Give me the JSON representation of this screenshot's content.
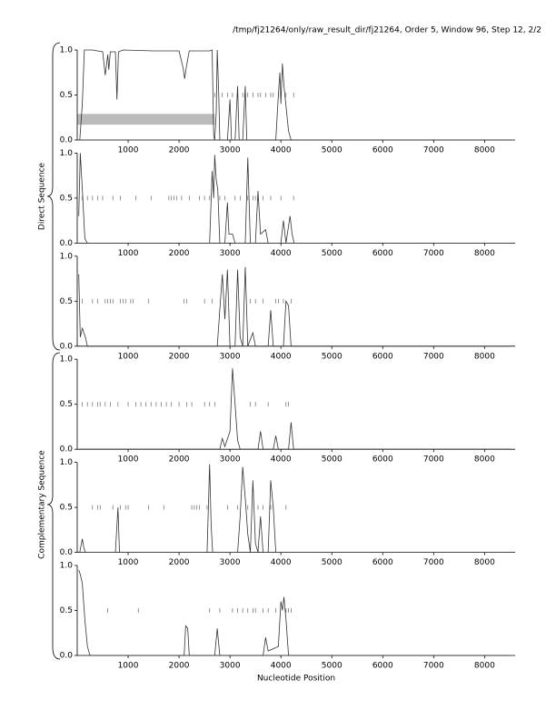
{
  "title": "/tmp/fj21264/only/raw_result_dir/fj21264, Order 5, Window 96, Step 12, 2/2",
  "group_labels": [
    "Direct Sequence",
    "Complementary Sequence"
  ],
  "xlabel": "Nucleotide Position",
  "chart_data": [
    {
      "type": "line",
      "xlim": [
        0,
        8600
      ],
      "ylim": [
        0,
        1
      ],
      "xticks": [
        1000,
        2000,
        3000,
        4000,
        5000,
        6000,
        7000,
        8000
      ],
      "yticks": [
        {
          "value": 0,
          "label": "0.0"
        },
        {
          "value": 0.5,
          "label": "0.5"
        },
        {
          "value": 1,
          "label": "1.0"
        }
      ],
      "x": [
        50,
        100,
        140,
        300,
        500,
        550,
        600,
        620,
        650,
        750,
        780,
        810,
        900,
        1500,
        2000,
        2080,
        2110,
        2140,
        2200,
        2600,
        2650,
        2680,
        2700,
        2730,
        2750,
        2780,
        2800,
        2950,
        3000,
        3030,
        3100,
        3150,
        3180,
        3250,
        3300,
        3330,
        3900,
        3950,
        3980,
        4000,
        4030,
        4060,
        4150,
        4200,
        8500
      ],
      "series": [
        {
          "color": "#333333",
          "values": [
            0,
            0.4,
            1,
            1,
            0.98,
            0.72,
            0.95,
            0.78,
            0.98,
            0.98,
            0.45,
            0.98,
            1,
            0.99,
            0.99,
            0.8,
            0.68,
            0.8,
            0.99,
            0.99,
            1,
            0.05,
            0,
            0.3,
            1,
            0.5,
            0,
            0,
            0.45,
            0,
            0,
            0.6,
            0,
            0,
            0.6,
            0,
            0,
            0.5,
            0.75,
            0.4,
            0.85,
            0.6,
            0.1,
            0,
            0
          ]
        }
      ],
      "markers": {
        "y": 0.5,
        "x": [
          2700,
          2850,
          2950,
          3050,
          3150,
          3250,
          3300,
          3350,
          3450,
          3550,
          3600,
          3700,
          3800,
          3850,
          3950,
          4100,
          4250
        ]
      },
      "band": {
        "x": [
          0,
          2700
        ],
        "y": [
          0.17,
          0.29
        ],
        "color": "#bbbbbb"
      }
    },
    {
      "type": "line",
      "xlim": [
        0,
        8600
      ],
      "ylim": [
        0,
        1
      ],
      "xticks": [
        1000,
        2000,
        3000,
        4000,
        5000,
        6000,
        7000,
        8000
      ],
      "yticks": [
        {
          "value": 0,
          "label": "0.0"
        },
        {
          "value": 0.5,
          "label": "0.5"
        },
        {
          "value": 1,
          "label": "1.0"
        }
      ],
      "x": [
        30,
        60,
        100,
        150,
        200,
        2600,
        2650,
        2680,
        2700,
        2730,
        2760,
        2800,
        2900,
        2950,
        2980,
        3050,
        3100,
        3300,
        3350,
        3400,
        3500,
        3550,
        3600,
        3700,
        3750,
        4000,
        4050,
        4100,
        4180,
        4220,
        4260,
        8500
      ],
      "series": [
        {
          "color": "#333333",
          "values": [
            0.3,
            1,
            0.6,
            0.05,
            0,
            0,
            0.8,
            0.5,
            0.98,
            0.7,
            0.6,
            0,
            0,
            0.45,
            0.1,
            0.1,
            0,
            0,
            0.95,
            0,
            0,
            0.58,
            0.1,
            0.15,
            0,
            0,
            0.25,
            0,
            0.3,
            0.1,
            0,
            0
          ]
        }
      ],
      "markers": {
        "y": 0.5,
        "x": [
          100,
          200,
          300,
          400,
          500,
          700,
          850,
          1150,
          1450,
          1800,
          1850,
          1900,
          1950,
          2050,
          2200,
          2400,
          2500,
          2600,
          2800,
          2900,
          3100,
          3200,
          3350,
          3450,
          3500,
          3550,
          3650,
          3800,
          4000,
          4250
        ]
      }
    },
    {
      "type": "line",
      "xlim": [
        0,
        8600
      ],
      "ylim": [
        0,
        1
      ],
      "xticks": [
        1000,
        2000,
        3000,
        4000,
        5000,
        6000,
        7000,
        8000
      ],
      "yticks": [
        {
          "value": 0,
          "label": "0.0"
        },
        {
          "value": 0.5,
          "label": "0.5"
        },
        {
          "value": 1,
          "label": "1.0"
        }
      ],
      "x": [
        30,
        60,
        100,
        130,
        160,
        200,
        2750,
        2850,
        2900,
        2950,
        3000,
        3100,
        3150,
        3200,
        3250,
        3300,
        3350,
        3450,
        3500,
        3750,
        3800,
        3850,
        4050,
        4100,
        4150,
        4200,
        8500
      ],
      "series": [
        {
          "color": "#333333",
          "values": [
            0.8,
            0.1,
            0.2,
            0.15,
            0.1,
            0,
            0,
            0.8,
            0.3,
            0.85,
            0,
            0,
            0.85,
            0.1,
            0,
            0.88,
            0,
            0.15,
            0,
            0,
            0.4,
            0,
            0,
            0.5,
            0.45,
            0,
            0
          ]
        }
      ],
      "markers": {
        "y": 0.5,
        "x": [
          100,
          300,
          400,
          550,
          600,
          650,
          700,
          850,
          900,
          950,
          1050,
          1100,
          1400,
          2100,
          2150,
          2500,
          2650,
          3400,
          3500,
          3650,
          3900,
          3950,
          4050,
          4200
        ]
      }
    },
    {
      "type": "line",
      "xlim": [
        0,
        8600
      ],
      "ylim": [
        0,
        1
      ],
      "xticks": [
        1000,
        2000,
        3000,
        4000,
        5000,
        6000,
        7000,
        8000
      ],
      "yticks": [
        {
          "value": 0,
          "label": "0.0"
        },
        {
          "value": 0.5,
          "label": "0.5"
        },
        {
          "value": 1,
          "label": "1.0"
        }
      ],
      "x": [
        50,
        2800,
        2850,
        2900,
        3000,
        3050,
        3100,
        3150,
        3200,
        3550,
        3600,
        3650,
        3850,
        3900,
        3950,
        4150,
        4200,
        4250,
        8500
      ],
      "series": [
        {
          "color": "#333333",
          "values": [
            0,
            0,
            0.12,
            0.03,
            0.2,
            0.9,
            0.5,
            0.1,
            0,
            0,
            0.2,
            0,
            0,
            0.15,
            0,
            0,
            0.3,
            0,
            0
          ]
        }
      ],
      "markers": {
        "y": 0.5,
        "x": [
          100,
          200,
          300,
          400,
          450,
          550,
          650,
          800,
          1000,
          1150,
          1250,
          1350,
          1450,
          1550,
          1650,
          1750,
          1850,
          2000,
          2150,
          2250,
          2500,
          2600,
          2700,
          3400,
          3500,
          3750,
          4100,
          4150
        ]
      }
    },
    {
      "type": "line",
      "xlim": [
        0,
        8600
      ],
      "ylim": [
        0,
        1
      ],
      "xticks": [
        1000,
        2000,
        3000,
        4000,
        5000,
        6000,
        7000,
        8000
      ],
      "yticks": [
        {
          "value": 0,
          "label": "0.0"
        },
        {
          "value": 0.5,
          "label": "0.5"
        },
        {
          "value": 1,
          "label": "1.0"
        }
      ],
      "x": [
        50,
        100,
        130,
        160,
        750,
        800,
        830,
        2550,
        2600,
        2630,
        2660,
        3150,
        3200,
        3250,
        3300,
        3350,
        3400,
        3450,
        3500,
        3550,
        3600,
        3650,
        3750,
        3800,
        3850,
        3900,
        8500
      ],
      "series": [
        {
          "color": "#333333",
          "values": [
            0,
            0.15,
            0.05,
            0,
            0,
            0.5,
            0,
            0,
            0.98,
            0.3,
            0,
            0,
            0.4,
            0.95,
            0.6,
            0.2,
            0,
            0.8,
            0.1,
            0,
            0.4,
            0,
            0,
            0.8,
            0.5,
            0,
            0
          ]
        }
      ],
      "markers": {
        "y": 0.5,
        "x": [
          300,
          400,
          450,
          700,
          850,
          950,
          1000,
          1400,
          1700,
          2250,
          2300,
          2350,
          2400,
          2550,
          2950,
          3150,
          3350,
          3550,
          3650,
          3800,
          3850,
          4100
        ]
      }
    },
    {
      "type": "line",
      "xlim": [
        0,
        8600
      ],
      "ylim": [
        0,
        1
      ],
      "xticks": [
        1000,
        2000,
        3000,
        4000,
        5000,
        6000,
        7000,
        8000
      ],
      "yticks": [
        {
          "value": 0,
          "label": "0.0"
        },
        {
          "value": 0.5,
          "label": "0.5"
        },
        {
          "value": 1,
          "label": "1.0"
        }
      ],
      "x": [
        30,
        60,
        100,
        150,
        200,
        250,
        2100,
        2130,
        2170,
        2200,
        2700,
        2750,
        2800,
        3650,
        3700,
        3750,
        3950,
        4000,
        4030,
        4060,
        4100,
        4150,
        8500
      ],
      "series": [
        {
          "color": "#333333",
          "values": [
            0.95,
            0.9,
            0.8,
            0.4,
            0.1,
            0,
            0,
            0.33,
            0.3,
            0,
            0,
            0.3,
            0,
            0,
            0.2,
            0.05,
            0.1,
            0.6,
            0.5,
            0.65,
            0.4,
            0,
            0
          ]
        }
      ],
      "markers": {
        "y": 0.5,
        "x": [
          600,
          1200,
          2600,
          2800,
          3050,
          3150,
          3250,
          3350,
          3450,
          3500,
          3650,
          3750,
          3900,
          4100,
          4150,
          4200
        ]
      }
    }
  ]
}
